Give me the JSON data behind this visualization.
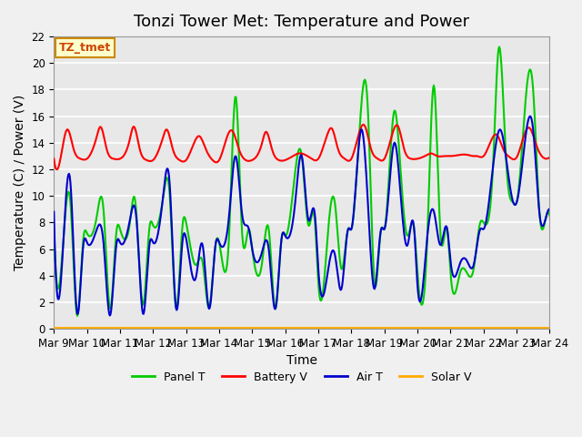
{
  "title": "Tonzi Tower Met: Temperature and Power",
  "xlabel": "Time",
  "ylabel": "Temperature (C) / Power (V)",
  "annotation": "TZ_tmet",
  "xlim": [
    0,
    15
  ],
  "ylim": [
    0,
    22
  ],
  "yticks": [
    0,
    2,
    4,
    6,
    8,
    10,
    12,
    14,
    16,
    18,
    20,
    22
  ],
  "xtick_labels": [
    "Mar 9",
    "Mar 10",
    "Mar 11",
    "Mar 12",
    "Mar 13",
    "Mar 14",
    "Mar 15",
    "Mar 16",
    "Mar 17",
    "Mar 18",
    "Mar 19",
    "Mar 20",
    "Mar 21",
    "Mar 22",
    "Mar 23",
    "Mar 24"
  ],
  "colors": {
    "panel_t": "#00cc00",
    "battery_v": "#ff0000",
    "air_t": "#0000cc",
    "solar_v": "#ffaa00"
  },
  "legend_labels": [
    "Panel T",
    "Battery V",
    "Air T",
    "Solar V"
  ],
  "background_color": "#e8e8e8",
  "plot_bg_color": "#e8e8e8",
  "grid_color": "#ffffff",
  "title_fontsize": 13,
  "axis_fontsize": 10,
  "tick_fontsize": 8.5
}
